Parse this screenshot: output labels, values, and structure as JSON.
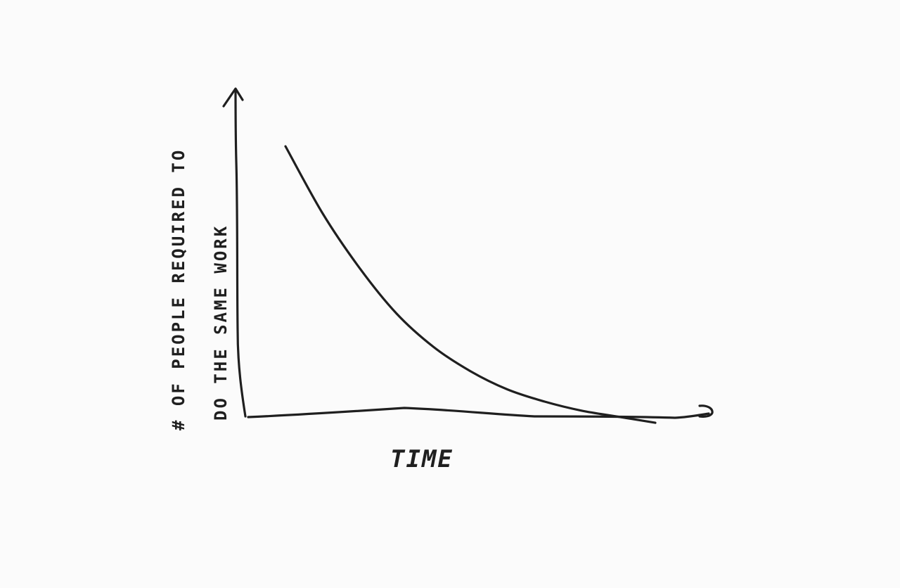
{
  "chart_data": {
    "type": "line",
    "title": "",
    "xlabel": "TIME",
    "ylabel_lines": [
      "# OF PEOPLE REQUIRED TO",
      "DO THE SAME WORK"
    ],
    "x_ticks": [],
    "y_ticks": [],
    "grid": false,
    "legend": "none",
    "line_color": "#1f1f1f",
    "series": [
      {
        "values_description": "decreasing curve (illustrative, no numeric scale)",
        "x": [
          0,
          1,
          2,
          3,
          4,
          5,
          6,
          7,
          8,
          9,
          10
        ],
        "y": [
          100,
          78,
          60,
          45,
          34,
          26,
          20,
          16,
          13,
          11,
          9
        ]
      }
    ]
  }
}
